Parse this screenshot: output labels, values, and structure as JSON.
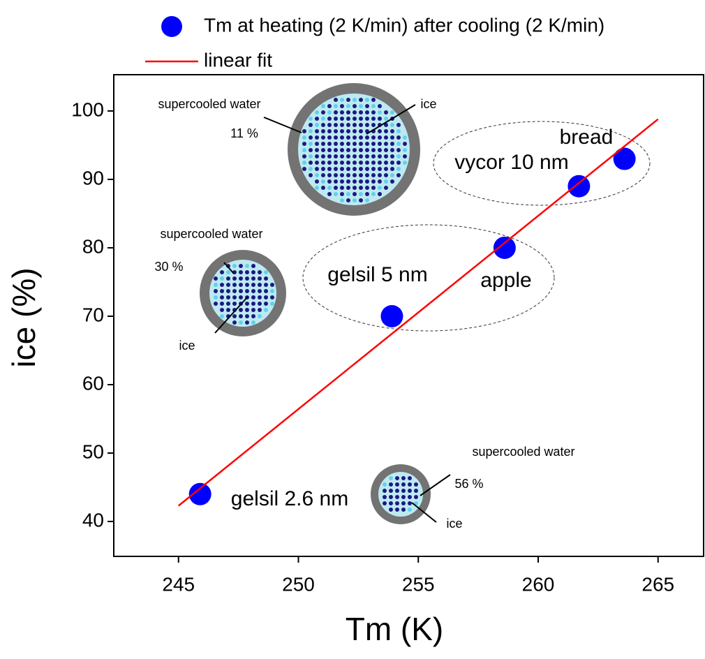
{
  "chart_data": {
    "type": "scatter",
    "xlabel": "Tm (K)",
    "ylabel": "ice (%)",
    "xlim": [
      242.3,
      266.9
    ],
    "ylim": [
      34.9,
      105.3
    ],
    "xticks": [
      245,
      250,
      255,
      260,
      265
    ],
    "yticks": [
      40,
      50,
      60,
      70,
      80,
      90,
      100
    ],
    "legend": "top",
    "series": [
      {
        "name": "Tm at heating (2 K/min) after cooling (2 K/min)",
        "color": "#0000ff",
        "x": [
          245.9,
          253.9,
          258.6,
          261.7,
          263.6
        ],
        "values": [
          44,
          70,
          80,
          89,
          93
        ]
      },
      {
        "name": "linear fit",
        "color": "#ff0000",
        "type": "line",
        "x": [
          245,
          265
        ],
        "values": [
          42.3,
          98.8
        ]
      }
    ],
    "annotations": [
      "supercooled water",
      "11 %",
      "ice",
      "supercooled water",
      "30 %",
      "ice",
      "supercooled water",
      "56 %",
      "ice",
      "bread",
      "vycor 10 nm",
      "gelsil 5 nm",
      "apple",
      "gelsil 2.6 nm"
    ]
  }
}
